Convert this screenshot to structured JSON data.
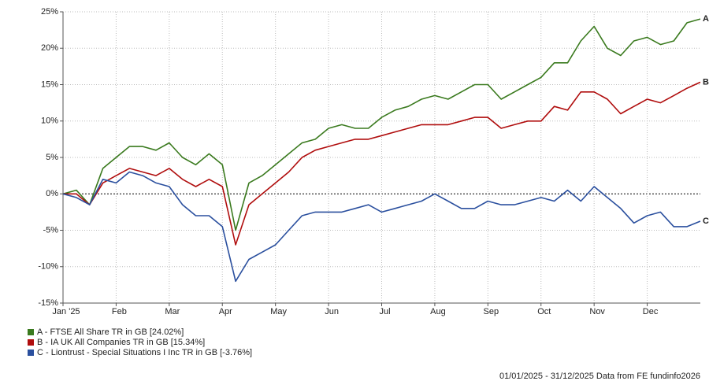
{
  "chart_data": {
    "type": "line",
    "categories": [
      "Jan '25",
      null,
      null,
      null,
      "Feb",
      null,
      null,
      null,
      "Mar",
      null,
      null,
      null,
      "Apr",
      null,
      null,
      null,
      "May",
      null,
      null,
      null,
      "Jun",
      null,
      null,
      null,
      "Jul",
      null,
      null,
      null,
      "Aug",
      null,
      null,
      null,
      "Sep",
      null,
      null,
      null,
      "Oct",
      null,
      null,
      null,
      "Nov",
      null,
      null,
      null,
      "Dec",
      null,
      null,
      null,
      null
    ],
    "series": [
      {
        "name": "A - FTSE All Share TR in GB [24.02%]",
        "label": "A",
        "color": "#3a7a1e",
        "values": [
          0,
          0.5,
          -1.5,
          3.5,
          5,
          6.5,
          6.5,
          6,
          7,
          5,
          4,
          5.5,
          4,
          -5,
          1.5,
          2.5,
          4,
          5.5,
          7,
          7.5,
          9,
          9.5,
          9,
          9,
          10.5,
          11.5,
          12,
          13,
          13.5,
          13,
          14,
          15,
          15,
          13,
          14,
          15,
          16,
          18,
          18,
          21,
          23,
          20,
          19,
          21,
          21.5,
          20.5,
          21,
          23.5,
          24.02
        ]
      },
      {
        "name": "B - IA UK All Companies TR in GB [15.34%]",
        "label": "B",
        "color": "#b00d0d",
        "values": [
          0,
          0,
          -1.5,
          1.5,
          2.5,
          3.5,
          3,
          2.5,
          3.5,
          2,
          1,
          2,
          1,
          -7,
          -1.5,
          0,
          1.5,
          3,
          5,
          6,
          6.5,
          7,
          7.5,
          7.5,
          8,
          8.5,
          9,
          9.5,
          9.5,
          9.5,
          10,
          10.5,
          10.5,
          9,
          9.5,
          10,
          10,
          12,
          11.5,
          14,
          14,
          13,
          11,
          12,
          13,
          12.5,
          13.5,
          14.5,
          15.34
        ]
      },
      {
        "name": "C - Liontrust - Special Situations I Inc TR in GB [-3.76%]",
        "label": "C",
        "color": "#2a4f9e",
        "values": [
          0,
          -0.5,
          -1.5,
          2,
          1.5,
          3,
          2.5,
          1.5,
          1,
          -1.5,
          -3,
          -3,
          -4.5,
          -12,
          -9,
          -8,
          -7,
          -5,
          -3,
          -2.5,
          -2.5,
          -2.5,
          -2,
          -1.5,
          -2.5,
          -2,
          -1.5,
          -1,
          0,
          -1,
          -2,
          -2,
          -1,
          -1.5,
          -1.5,
          -1,
          -0.5,
          -1,
          0.5,
          -1,
          1,
          -0.5,
          -2,
          -4,
          -3,
          -2.5,
          -4.5,
          -4.5,
          -3.76
        ]
      }
    ],
    "ylim": [
      -15,
      25
    ],
    "yticks": [
      {
        "value": -15,
        "label": "-15%"
      },
      {
        "value": -10,
        "label": "-10%"
      },
      {
        "value": -5,
        "label": "-5%"
      },
      {
        "value": 0,
        "label": "0%"
      },
      {
        "value": 5,
        "label": "5%"
      },
      {
        "value": 10,
        "label": "10%"
      },
      {
        "value": 15,
        "label": "15%"
      },
      {
        "value": 20,
        "label": "20%"
      },
      {
        "value": 25,
        "label": "25%"
      }
    ],
    "grid": true,
    "zero_line": true,
    "legend": "bottom-left",
    "footer": "01/01/2025 - 31/12/2025 Data from FE fundinfo2026"
  }
}
